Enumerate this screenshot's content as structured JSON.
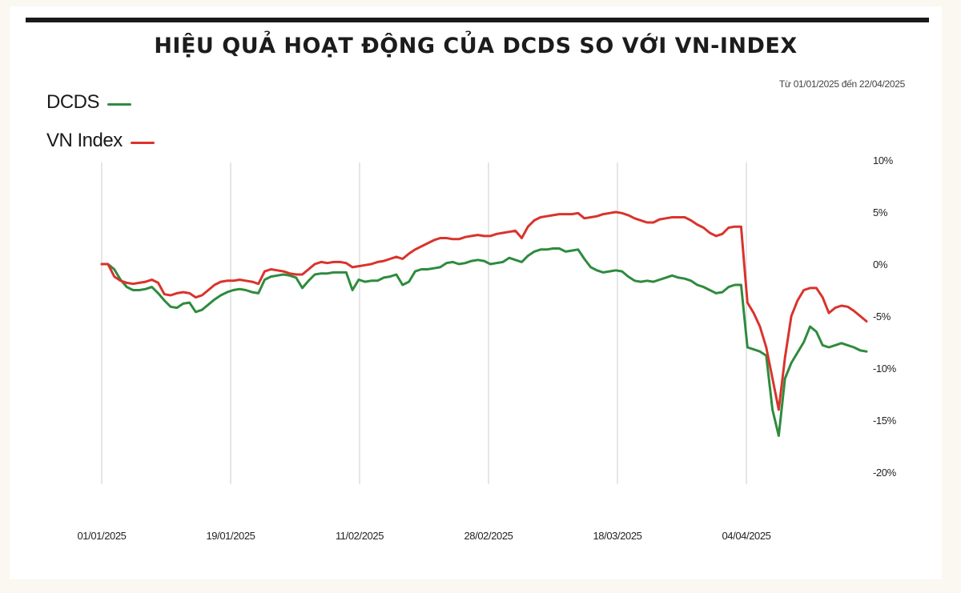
{
  "chart_data": {
    "type": "line",
    "title": "HIỆU QUẢ HOẠT ĐỘNG CỦA DCDS SO VỚI VN-INDEX",
    "subtitle": "Từ 01/01/2025 đến 22/04/2025",
    "x_tick_labels": [
      "01/01/2025",
      "19/01/2025",
      "11/02/2025",
      "28/02/2025",
      "18/03/2025",
      "04/04/2025"
    ],
    "y_tick_labels": [
      "10%",
      "5%",
      "0%",
      "-5%",
      "-10%",
      "-15%",
      "-20%"
    ],
    "ylim": [
      -20,
      10
    ],
    "grid": "vertical",
    "legend_position": "top-left",
    "series": [
      {
        "name": "DCDS",
        "color": "#2e8b3e",
        "values": [
          0,
          0,
          -0.5,
          -1.5,
          -2.2,
          -2.5,
          -2.5,
          -2.4,
          -2.2,
          -2.8,
          -3.5,
          -4.1,
          -4.2,
          -3.8,
          -3.7,
          -4.6,
          -4.4,
          -3.9,
          -3.4,
          -3.0,
          -2.7,
          -2.5,
          -2.4,
          -2.5,
          -2.7,
          -2.8,
          -1.5,
          -1.2,
          -1.1,
          -1.0,
          -1.1,
          -1.3,
          -2.3,
          -1.6,
          -1.0,
          -0.9,
          -0.9,
          -0.8,
          -0.8,
          -0.8,
          -2.5,
          -1.5,
          -1.7,
          -1.6,
          -1.6,
          -1.3,
          -1.2,
          -1.0,
          -2.0,
          -1.7,
          -0.7,
          -0.5,
          -0.5,
          -0.4,
          -0.3,
          0.1,
          0.2,
          0.0,
          0.1,
          0.3,
          0.4,
          0.3,
          0.0,
          0.1,
          0.2,
          0.6,
          0.4,
          0.2,
          0.8,
          1.2,
          1.4,
          1.4,
          1.5,
          1.5,
          1.2,
          1.3,
          1.4,
          0.5,
          -0.3,
          -0.6,
          -0.8,
          -0.7,
          -0.6,
          -0.7,
          -1.2,
          -1.6,
          -1.7,
          -1.6,
          -1.7,
          -1.5,
          -1.3,
          -1.1,
          -1.3,
          -1.4,
          -1.6,
          -2.0,
          -2.2,
          -2.5,
          -2.8,
          -2.7,
          -2.2,
          -2.0,
          -2.0,
          -8.0,
          -8.2,
          -8.4,
          -8.8,
          -14.0,
          -16.5,
          -11.0,
          -9.5,
          -8.5,
          -7.5,
          -6.0,
          -6.5,
          -7.8,
          -8.0,
          -7.8,
          -7.6,
          -7.8,
          -8.0,
          -8.3,
          -8.4
        ]
      },
      {
        "name": "VN Index",
        "color": "#d9332c",
        "values": [
          0,
          0,
          -1.2,
          -1.6,
          -1.8,
          -1.9,
          -1.8,
          -1.7,
          -1.5,
          -1.8,
          -2.9,
          -3.0,
          -2.8,
          -2.7,
          -2.8,
          -3.2,
          -3.0,
          -2.5,
          -2.0,
          -1.7,
          -1.6,
          -1.6,
          -1.5,
          -1.6,
          -1.7,
          -1.9,
          -0.7,
          -0.5,
          -0.6,
          -0.7,
          -0.9,
          -1.0,
          -1.0,
          -0.5,
          0.0,
          0.2,
          0.1,
          0.2,
          0.2,
          0.1,
          -0.3,
          -0.2,
          -0.1,
          0.0,
          0.2,
          0.3,
          0.5,
          0.7,
          0.5,
          1.0,
          1.4,
          1.7,
          2.0,
          2.3,
          2.5,
          2.5,
          2.4,
          2.4,
          2.6,
          2.7,
          2.8,
          2.7,
          2.7,
          2.9,
          3.0,
          3.1,
          3.2,
          2.5,
          3.6,
          4.2,
          4.5,
          4.6,
          4.7,
          4.8,
          4.8,
          4.8,
          4.9,
          4.4,
          4.5,
          4.6,
          4.8,
          4.9,
          5.0,
          4.9,
          4.7,
          4.4,
          4.2,
          4.0,
          4.0,
          4.3,
          4.4,
          4.5,
          4.5,
          4.5,
          4.2,
          3.8,
          3.5,
          3.0,
          2.7,
          2.9,
          3.5,
          3.6,
          3.6,
          -3.7,
          -4.7,
          -6.0,
          -8.0,
          -11.0,
          -14.0,
          -9.0,
          -5.0,
          -3.5,
          -2.5,
          -2.3,
          -2.3,
          -3.2,
          -4.7,
          -4.2,
          -4.0,
          -4.1,
          -4.5,
          -5.0,
          -5.5
        ]
      }
    ]
  }
}
